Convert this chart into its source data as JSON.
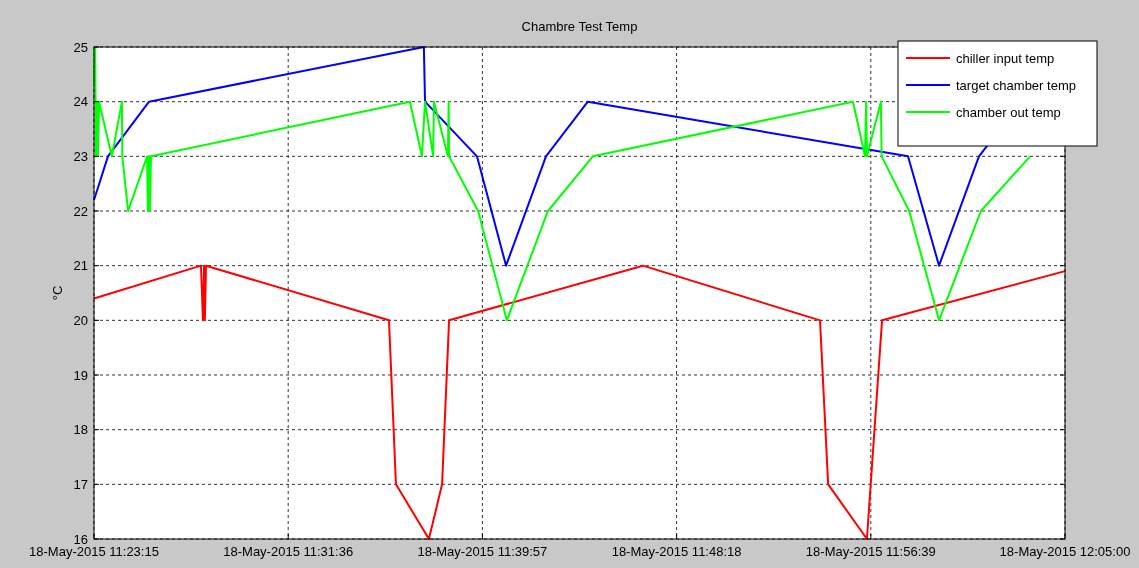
{
  "chart_data": {
    "type": "line",
    "title": "Chambre Test Temp",
    "ylabel": "°C",
    "xlim": [
      "2015-05-18T11:23:15",
      "2015-05-18T12:05:00"
    ],
    "ylim": [
      16,
      25
    ],
    "xticks": [
      {
        "value": "2015-05-18T11:23:15",
        "label": "18-May-2015 11:23:15"
      },
      {
        "value": "2015-05-18T11:31:36",
        "label": "18-May-2015 11:31:36"
      },
      {
        "value": "2015-05-18T11:39:57",
        "label": "18-May-2015 11:39:57"
      },
      {
        "value": "2015-05-18T11:48:18",
        "label": "18-May-2015 11:48:18"
      },
      {
        "value": "2015-05-18T11:56:39",
        "label": "18-May-2015 11:56:39"
      },
      {
        "value": "2015-05-18T12:05:00",
        "label": "18-May-2015 12:05:00"
      }
    ],
    "yticks": [
      16,
      17,
      18,
      19,
      20,
      21,
      22,
      23,
      24,
      25
    ],
    "grid": true,
    "legend": "top right",
    "marker": "none",
    "line_style": "solid",
    "series": [
      {
        "name": "chiller input temp",
        "color": "#ff0000",
        "x": [
          "2015-05-18T11:23:15",
          "2015-05-18T11:27:51",
          "2015-05-18T11:27:56",
          "2015-05-18T11:27:59",
          "2015-05-18T11:28:01",
          "2015-05-18T11:28:04",
          "2015-05-18T11:35:56",
          "2015-05-18T11:36:14",
          "2015-05-18T11:37:39",
          "2015-05-18T11:38:13",
          "2015-05-18T11:38:31",
          "2015-05-18T11:46:51",
          "2015-05-18T11:54:28",
          "2015-05-18T11:54:49",
          "2015-05-18T11:56:29",
          "2015-05-18T11:57:08",
          "2015-05-18T12:05:00"
        ],
        "values": [
          20.4,
          21,
          20,
          21,
          20,
          21,
          20,
          17,
          16,
          17,
          20,
          21,
          20,
          17,
          16,
          20,
          20.9
        ]
      },
      {
        "name": "target chamber temp",
        "color": "#0000ff",
        "x": [
          "2015-05-18T11:23:15",
          "2015-05-18T11:23:51",
          "2015-05-18T11:25:37",
          "2015-05-18T11:37:26",
          "2015-05-18T11:37:29",
          "2015-05-18T11:39:43",
          "2015-05-18T11:40:58",
          "2015-05-18T11:42:41",
          "2015-05-18T11:44:29",
          "2015-05-18T11:58:15",
          "2015-05-18T11:59:35",
          "2015-05-18T12:01:18",
          "2015-05-18T12:01:40"
        ],
        "values": [
          22.2,
          23,
          24,
          25,
          24,
          23,
          21,
          23,
          24,
          23,
          21,
          23,
          23.2
        ]
      },
      {
        "name": "chamber out temp",
        "color": "#00ff00",
        "x": [
          "2015-05-18T11:23:15",
          "2015-05-18T11:23:18",
          "2015-05-18T11:23:20",
          "2015-05-18T11:23:23",
          "2015-05-18T11:23:25",
          "2015-05-18T11:23:28",
          "2015-05-18T11:24:01",
          "2015-05-18T11:24:27",
          "2015-05-18T11:24:28",
          "2015-05-18T11:24:43",
          "2015-05-18T11:25:32",
          "2015-05-18T11:25:34",
          "2015-05-18T11:25:37",
          "2015-05-18T11:25:39",
          "2015-05-18T11:25:42",
          "2015-05-18T11:36:50",
          "2015-05-18T11:37:21",
          "2015-05-18T11:37:29",
          "2015-05-18T11:37:50",
          "2015-05-18T11:37:52",
          "2015-05-18T11:38:28",
          "2015-05-18T11:38:30",
          "2015-05-18T11:38:31",
          "2015-05-18T11:39:46",
          "2015-05-18T11:41:00",
          "2015-05-18T11:42:46",
          "2015-05-18T11:44:42",
          "2015-05-18T11:55:53",
          "2015-05-18T11:56:24",
          "2015-05-18T11:56:27",
          "2015-05-18T11:56:29",
          "2015-05-18T11:57:05",
          "2015-05-18T11:57:07",
          "2015-05-18T11:58:18",
          "2015-05-18T11:59:35",
          "2015-05-18T12:01:23",
          "2015-05-18T12:03:30"
        ],
        "values": [
          24.3,
          25,
          23,
          24,
          23,
          24,
          23,
          24,
          23,
          22,
          23,
          22,
          23,
          22,
          23,
          24,
          23,
          24,
          23,
          24,
          23,
          24,
          23,
          22,
          20,
          22,
          23,
          24,
          23,
          24,
          23,
          24,
          23,
          22,
          20,
          22,
          23
        ]
      }
    ]
  }
}
